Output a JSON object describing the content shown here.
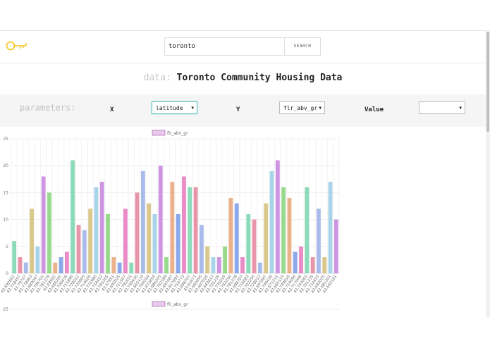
{
  "header": {
    "logo_icon": "key-icon",
    "search": {
      "value": "toronto",
      "placeholder": "",
      "button_label": "SEARCH"
    }
  },
  "dataset": {
    "prefix": "data:",
    "name": "Toronto Community Housing Data"
  },
  "parameters": {
    "label": "parameters:",
    "x_label": "X",
    "x_selected": "latitude",
    "y_label": "Y",
    "y_selected": "flr_abv_gr",
    "value_label": "Value",
    "value_selected": ""
  },
  "colors": {
    "accent_logo": "#f5c518",
    "select_focus": "#5cbfbf"
  },
  "chart_data": [
    {
      "type": "bar",
      "legend": [
        "flr_abv_gr"
      ],
      "ylim": [
        0,
        25
      ],
      "yticks": [
        0,
        5,
        10,
        15,
        20,
        25
      ],
      "grid": true,
      "legend_placement": "top",
      "categories": [
        "43.692662",
        "43.718457",
        "43.79767",
        "43.778063",
        "43.689047",
        "43.706702",
        "43.781378",
        "43.69562",
        "43.686205",
        "43.700436",
        "43.715896",
        "43.728012",
        "43.720005",
        "43.714626",
        "43.725986",
        "43.734452",
        "43.785265",
        "43.67951",
        "43.693025",
        "43.711507",
        "43.791651",
        "43.700436",
        "43.665133",
        "43.764264",
        "43.672854",
        "43.686205",
        "43.762599",
        "43.697087",
        "43.617893",
        "43.754773",
        "43.698707",
        "43.61671",
        "43.660056",
        "43.607016",
        "43.643813",
        "43.701235",
        "43.735016",
        "43.702256",
        "43.781378",
        "43.698707",
        "43.716083",
        "43.702256",
        "43.728012",
        "43.697087",
        "43.700436",
        "43.671211",
        "43.665133",
        "43.749016",
        "43.714696",
        "43.717048",
        "43.743063",
        "43.701235",
        "43.710433",
        "43.693025",
        "43.681201",
        "43.662101"
      ],
      "values": [
        6,
        3,
        2,
        12,
        5,
        18,
        15,
        2,
        3,
        4,
        21,
        9,
        8,
        12,
        16,
        17,
        11,
        3,
        2,
        12,
        2,
        15,
        19,
        13,
        11,
        20,
        3,
        17,
        11,
        18,
        16,
        16,
        9,
        5,
        3,
        3,
        5,
        14,
        13,
        3,
        11,
        10,
        2,
        13,
        19,
        21,
        16,
        14,
        4,
        5,
        16,
        3,
        12,
        3,
        17,
        10
      ],
      "series_name": "flr_abv_gr"
    },
    {
      "type": "bar",
      "legend": [
        "flr_abv_gr"
      ],
      "yticks": [
        25
      ]
    }
  ]
}
